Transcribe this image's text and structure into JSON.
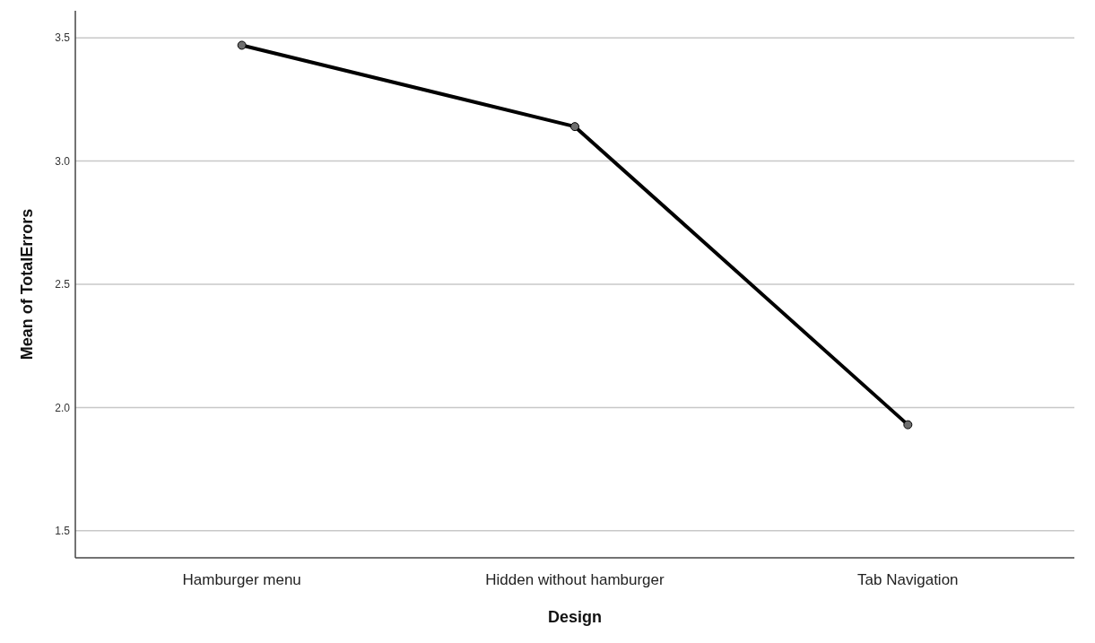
{
  "chart_data": {
    "type": "line",
    "xlabel": "Design",
    "ylabel": "Mean of TotalErrors",
    "categories": [
      "Hamburger menu",
      "Hidden without hamburger",
      "Tab Navigation"
    ],
    "series": [
      {
        "color": "#000000",
        "values": [
          3.47,
          3.14,
          1.93
        ]
      }
    ],
    "ylim": [
      1.39,
      3.61
    ],
    "yticks": [
      {
        "value": 1.5,
        "label": "1.5"
      },
      {
        "value": 2.0,
        "label": "2.0"
      },
      {
        "value": 2.5,
        "label": "2.5"
      },
      {
        "value": 3.0,
        "label": "3.0"
      },
      {
        "value": 3.5,
        "label": "3.5"
      }
    ],
    "grid": "y",
    "marker": "circle",
    "line_style": "solid"
  }
}
